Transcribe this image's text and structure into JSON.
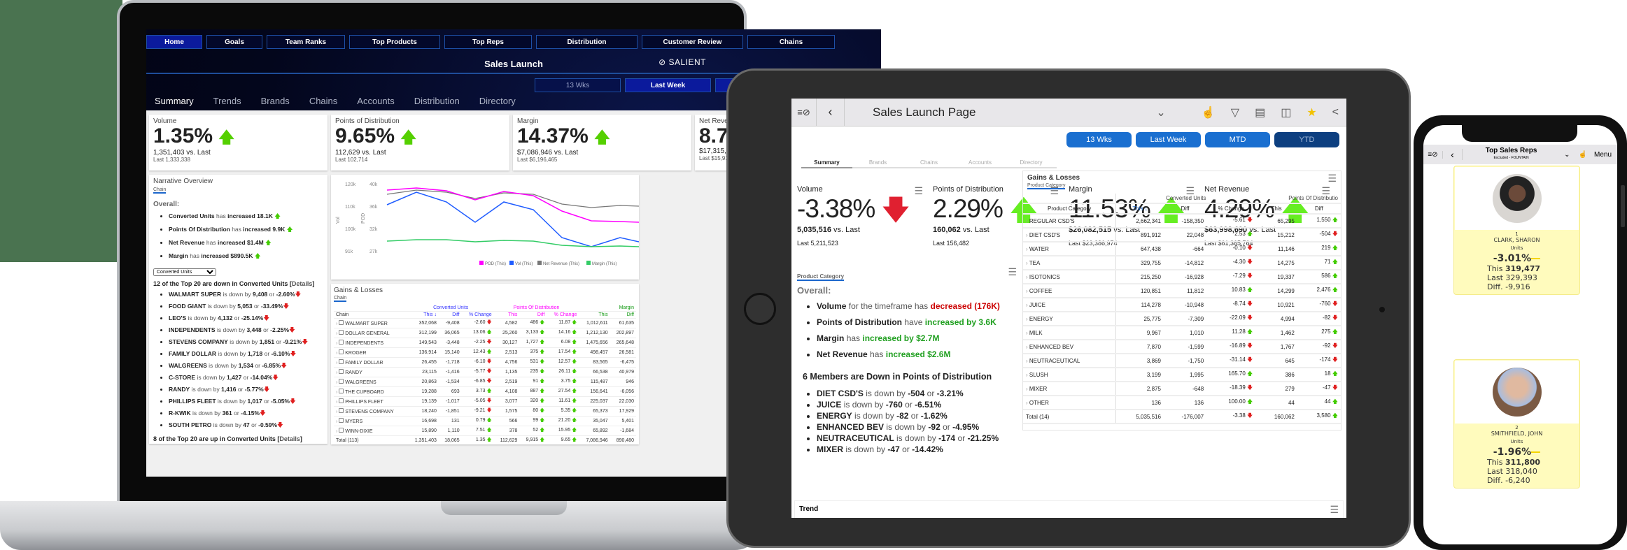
{
  "laptop": {
    "nav": [
      "Home",
      "Goals",
      "Team Ranks",
      "Top Products",
      "Top Reps",
      "Distribution",
      "Customer Review",
      "Chains"
    ],
    "nav_active": "Home",
    "title": "Sales Launch",
    "logo": "SALIENT",
    "periods": [
      "13 Wks",
      "Last Week",
      "MTD"
    ],
    "period_active": "Last Week",
    "tabs": [
      "Summary",
      "Trends",
      "Brands",
      "Chains",
      "Accounts",
      "Distribution",
      "Directory"
    ],
    "tab_active": "Summary",
    "kpis": [
      {
        "label": "Volume",
        "value": "1.35%",
        "sub": "1,351,403 vs. Last",
        "last": "Last 1,333,338",
        "dir": "up"
      },
      {
        "label": "Points of Distribution",
        "value": "9.65%",
        "sub": "112,629 vs. Last",
        "last": "Last 102,714",
        "dir": "up"
      },
      {
        "label": "Margin",
        "value": "14.37%",
        "sub": "$7,086,946 vs. Last",
        "last": "Last $6,196,465",
        "dir": "up"
      },
      {
        "label": "Net Revenue",
        "value": "8.78",
        "sub": "$17,315,001 vs. Last",
        "last": "Last $15,917,65",
        "dir": "up"
      }
    ],
    "narrative": {
      "title": "Narrative Overview",
      "chip": "Chain",
      "overall_label": "Overall:",
      "overall": [
        {
          "metric": "Converted Units",
          "verb": "has",
          "change": "increased 18.1K"
        },
        {
          "metric": "Points Of Distribution",
          "verb": "has",
          "change": "increased 9.9K"
        },
        {
          "metric": "Net Revenue",
          "verb": "has",
          "change": "increased $1.4M"
        },
        {
          "metric": "Margin",
          "verb": "has",
          "change": "increased $890.5K"
        }
      ],
      "select_value": "Converted Units",
      "down_heading": "12 of the Top 20 are down in Converted Units",
      "details_link": "Details",
      "down_items": [
        {
          "name": "WALMART SUPER",
          "by": "9,408",
          "pct": "-2.60%"
        },
        {
          "name": "FOOD GIANT",
          "by": "5,053",
          "pct": "-33.49%"
        },
        {
          "name": "LEO'S",
          "by": "4,132",
          "pct": "-25.14%"
        },
        {
          "name": "INDEPENDENTS",
          "by": "3,448",
          "pct": "-2.25%"
        },
        {
          "name": "STEVENS COMPANY",
          "by": "1,851",
          "pct": "-9.21%"
        },
        {
          "name": "FAMILY DOLLAR",
          "by": "1,718",
          "pct": "-6.10%"
        },
        {
          "name": "WALGREENS",
          "by": "1,534",
          "pct": "-6.85%"
        },
        {
          "name": "C-STORE",
          "by": "1,427",
          "pct": "-14.04%"
        },
        {
          "name": "RANDY",
          "by": "1,416",
          "pct": "-5.77%"
        },
        {
          "name": "PHILLIPS FLEET",
          "by": "1,017",
          "pct": "-5.05%"
        },
        {
          "name": "R-KWIK",
          "by": "361",
          "pct": "-4.15%"
        },
        {
          "name": "SOUTH PETRO",
          "by": "47",
          "pct": "-0.59%"
        }
      ],
      "up_heading": "8 of the Top 20 are up in Converted Units"
    },
    "chart": {
      "y1_label": "Vol",
      "y2_label": "POD",
      "y1_ticks": [
        "120k",
        "110k",
        "100k",
        "91k"
      ],
      "y2_ticks": [
        "40k",
        "36k",
        "32k",
        "27k"
      ],
      "legend": [
        "POD (This)",
        "Vol (This)",
        "Net Revenue (This)",
        "Margin (This)"
      ],
      "colors": [
        "#ff00ff",
        "#1f5cff",
        "#777777",
        "#33cc66"
      ]
    },
    "gains_losses": {
      "title": "Gains & Losses",
      "chip": "Chain",
      "groups": [
        "Converted Units",
        "Points Of Distribution",
        "Margin"
      ],
      "columns": [
        "Chain",
        "This ↓",
        "Diff",
        "% Change",
        "This",
        "Diff",
        "% Change",
        "This",
        "Diff"
      ],
      "rows": [
        [
          "WALMART SUPER",
          "352,068",
          "-9,408",
          "-2.60 ↓",
          "4,582",
          "486 ↑",
          "11.87 ↑",
          "1,012,611",
          "61,635"
        ],
        [
          "DOLLAR GENERAL",
          "312,199",
          "36,065",
          "13.06 ↑",
          "25,260",
          "3,133 ↑",
          "14.16 ↑",
          "1,212,130",
          "202,897"
        ],
        [
          "INDEPENDENTS",
          "149,543",
          "-3,448",
          "-2.25 ↓",
          "30,127",
          "1,727 ↑",
          "6.08 ↑",
          "1,475,656",
          "265,648"
        ],
        [
          "KROGER",
          "136,914",
          "15,140",
          "12.43 ↑",
          "2,513",
          "375 ↑",
          "17.54 ↑",
          "498,457",
          "26,581"
        ],
        [
          "FAMILY DOLLAR",
          "26,455",
          "-1,718",
          "-6.10 ↓",
          "4,756",
          "531 ↑",
          "12.57 ↑",
          "83,565",
          "-6,475"
        ],
        [
          "RANDY",
          "23,115",
          "-1,416",
          "-5.77 ↓",
          "1,135",
          "235 ↑",
          "26.11 ↑",
          "66,538",
          "40,979"
        ],
        [
          "WALGREENS",
          "20,863",
          "-1,534",
          "-6.85 ↓",
          "2,519",
          "91 ↑",
          "3.75 ↑",
          "115,487",
          "946"
        ],
        [
          "THE CUPBOARD",
          "19,288",
          "693",
          "3.73 ↑",
          "4,108",
          "887 ↑",
          "27.54 ↑",
          "156,641",
          "-6,056"
        ],
        [
          "PHILLIPS FLEET",
          "19,139",
          "-1,017",
          "-5.05 ↓",
          "3,077",
          "320 ↑",
          "11.61 ↑",
          "225,037",
          "22,030"
        ],
        [
          "STEVENS COMPANY",
          "18,240",
          "-1,851",
          "-9.21 ↓",
          "1,575",
          "80 ↑",
          "5.35 ↑",
          "65,373",
          "17,929"
        ],
        [
          "MYERS",
          "16,698",
          "131",
          "0.79 ↑",
          "566",
          "99 ↑",
          "21.20 ↑",
          "35,047",
          "5,401"
        ],
        [
          "WINN-DIXIE",
          "15,890",
          "1,110",
          "7.51 ↑",
          "378",
          "52 ↑",
          "15.95 ↑",
          "65,892",
          "-1,684"
        ]
      ],
      "total": [
        "Total (113)",
        "1,351,403",
        "18,065",
        "1.35 ↑",
        "112,629",
        "9,915 ↑",
        "9.65 ↑",
        "7,086,946",
        "890,480"
      ]
    }
  },
  "tablet": {
    "title": "Sales Launch Page",
    "periods": [
      "13 Wks",
      "Last Week",
      "MTD",
      "YTD"
    ],
    "period_active": "YTD",
    "tabs": [
      "Summary",
      "Brands",
      "Chains",
      "Accounts",
      "Directory"
    ],
    "tab_active": "Summary",
    "kpis": [
      {
        "label": "Volume",
        "value": "-3.38%",
        "sub_bold": "5,035,516",
        "sub": " vs. Last",
        "last": "Last 5,211,523",
        "dir": "down"
      },
      {
        "label": "Points of Distribution",
        "value": "2.29%",
        "sub_bold": "160,062",
        "sub": " vs. Last",
        "last": "Last 156,482",
        "dir": "up"
      },
      {
        "label": "Margin",
        "value": "11.53%",
        "sub_bold": "$26,082,515",
        "sub": " vs. Last",
        "last": "Last $23,386,974",
        "dir": "up"
      },
      {
        "label": "Net Revenue",
        "value": "4.29%",
        "sub_bold": "$63,998,690",
        "sub": " vs. Last",
        "last": "Last $61,365,764",
        "dir": "up"
      }
    ],
    "narrative": {
      "chip": "Product Category",
      "overall_label": "Overall:",
      "overall": [
        {
          "metric": "Volume",
          "verb": "for the timeframe has",
          "change": "decreased (176K)",
          "tone": "red"
        },
        {
          "metric": "Points of Distribution",
          "verb": "have",
          "change": "increased by 3.6K",
          "tone": "grn"
        },
        {
          "metric": "Margin",
          "verb": "has",
          "change": "increased by $2.7M",
          "tone": "grn"
        },
        {
          "metric": "Net Revenue",
          "verb": "has",
          "change": "increased $2.6M",
          "tone": "grn"
        }
      ],
      "down_heading": "6 Members are Down in Points of Distribution",
      "down_items": [
        {
          "name": "DIET CSD'S",
          "by": "-504",
          "pct": "-3.21%"
        },
        {
          "name": "JUICE",
          "by": "-760",
          "pct": "-6.51%"
        },
        {
          "name": "ENERGY",
          "by": "-82",
          "pct": "-1.62%"
        },
        {
          "name": "ENHANCED BEV",
          "by": "-92",
          "pct": "-4.95%"
        },
        {
          "name": "NEUTRACEUTICAL",
          "by": "-174",
          "pct": "-21.25%"
        },
        {
          "name": "MIXER",
          "by": "-47",
          "pct": "-14.42%"
        }
      ]
    },
    "gains_losses": {
      "title": "Gains & Losses",
      "chip": "Product Category",
      "groups": [
        "Converted Units",
        "Points Of Distributio"
      ],
      "columns": [
        "Product Category",
        "This ↓",
        "Diff",
        "% Change",
        "This",
        "Diff"
      ],
      "rows": [
        [
          "REGULAR CSD'S",
          "2,662,341",
          "-158,350",
          "-5.61 ↓",
          "65,295",
          "1,550 ↑"
        ],
        [
          "DIET CSD'S",
          "891,912",
          "22,048",
          "2.53 ↑",
          "15,212",
          "-504 ↓"
        ],
        [
          "WATER",
          "647,438",
          "-664",
          "-0.10 ↓",
          "11,146",
          "219 ↑"
        ],
        [
          "TEA",
          "329,755",
          "-14,812",
          "-4.30 ↓",
          "14,275",
          "71 ↑"
        ],
        [
          "ISOTONICS",
          "215,250",
          "-16,928",
          "-7.29 ↓",
          "19,337",
          "586 ↑"
        ],
        [
          "COFFEE",
          "120,851",
          "11,812",
          "10.83 ↑",
          "14,299",
          "2,476 ↑"
        ],
        [
          "JUICE",
          "114,278",
          "-10,948",
          "-8.74 ↓",
          "10,921",
          "-760 ↓"
        ],
        [
          "ENERGY",
          "25,775",
          "-7,309",
          "-22.09 ↓",
          "4,994",
          "-82 ↓"
        ],
        [
          "MILK",
          "9,967",
          "1,010",
          "11.28 ↑",
          "1,462",
          "275 ↑"
        ],
        [
          "ENHANCED BEV",
          "7,870",
          "-1,599",
          "-16.89 ↓",
          "1,767",
          "-92 ↓"
        ],
        [
          "NEUTRACEUTICAL",
          "3,869",
          "-1,750",
          "-31.14 ↓",
          "645",
          "-174 ↓"
        ],
        [
          "SLUSH",
          "3,199",
          "1,995",
          "165.70 ↑",
          "386",
          "18 ↑"
        ],
        [
          "MIXER",
          "2,875",
          "-648",
          "-18.39 ↓",
          "279",
          "-47 ↓"
        ],
        [
          "OTHER",
          "136",
          "136",
          "100.00 ↑",
          "44",
          "44 ↑"
        ]
      ],
      "total": [
        "Total (14)",
        "5,035,516",
        "-176,007",
        "-3.38 ↓",
        "160,062",
        "3,580 ↑"
      ]
    },
    "trend_title": "Trend"
  },
  "phone": {
    "title": "Top Sales Reps",
    "subtitle": "Excluded - FOUNTAIN",
    "menu_label": "Menu",
    "reps": [
      {
        "rank": "1",
        "name": "CLARK, SHARON",
        "metric": "Units",
        "pct": "-3.01%",
        "this": "319,477",
        "last": "329,393",
        "diff": "-9,916"
      },
      {
        "rank": "2",
        "name": "SMITHFIELD, JOHN",
        "metric": "Units",
        "pct": "-1.96%",
        "this": "311,800",
        "last": "318,040",
        "diff": "-6,240"
      }
    ],
    "labels": {
      "this": "This",
      "last": "Last",
      "diff": "Diff."
    }
  }
}
